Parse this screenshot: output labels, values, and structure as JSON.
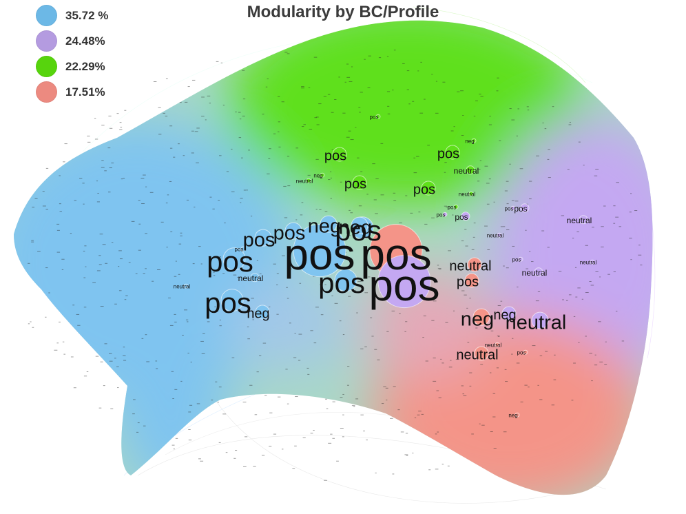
{
  "title": "Modularity by BC/Profile",
  "legend": [
    {
      "label": "35.72 %",
      "color": "#6cb8e6"
    },
    {
      "label": "24.48%",
      "color": "#b49be0"
    },
    {
      "label": "22.29%",
      "color": "#57d40d"
    },
    {
      "label": "17.51%",
      "color": "#ec8a80"
    }
  ],
  "clusters": [
    {
      "name": "blue",
      "color": "#7fc4f0"
    },
    {
      "name": "purple",
      "color": "#c4a8f2"
    },
    {
      "name": "green",
      "color": "#5fe01a"
    },
    {
      "name": "red",
      "color": "#f49488"
    }
  ],
  "node_labels": [
    {
      "text": "pos",
      "cluster": "blue",
      "size": "xl"
    },
    {
      "text": "pos",
      "cluster": "red",
      "size": "xl"
    },
    {
      "text": "pos",
      "cluster": "purple",
      "size": "xl"
    },
    {
      "text": "pos",
      "cluster": "blue",
      "size": "l"
    },
    {
      "text": "pos",
      "cluster": "blue",
      "size": "l"
    },
    {
      "text": "pos",
      "cluster": "blue",
      "size": "l"
    },
    {
      "text": "pos",
      "cluster": "blue",
      "size": "m"
    },
    {
      "text": "neg",
      "cluster": "blue",
      "size": "m"
    },
    {
      "text": "pos",
      "cluster": "blue",
      "size": "m"
    },
    {
      "text": "neg",
      "cluster": "blue",
      "size": "m"
    },
    {
      "text": "pos",
      "cluster": "blue",
      "size": "l"
    },
    {
      "text": "neg",
      "cluster": "blue",
      "size": "s"
    },
    {
      "text": "neutral",
      "cluster": "blue",
      "size": "xs"
    },
    {
      "text": "pos",
      "cluster": "blue",
      "size": "xxs"
    },
    {
      "text": "neutral",
      "cluster": "blue",
      "size": "xxs"
    },
    {
      "text": "neutral",
      "cluster": "green",
      "size": "xxs"
    },
    {
      "text": "neg",
      "cluster": "green",
      "size": "xxs"
    },
    {
      "text": "pos",
      "cluster": "green",
      "size": "xxs"
    },
    {
      "text": "pos",
      "cluster": "green",
      "size": "s"
    },
    {
      "text": "pos",
      "cluster": "green",
      "size": "s"
    },
    {
      "text": "pos",
      "cluster": "green",
      "size": "s"
    },
    {
      "text": "pos",
      "cluster": "green",
      "size": "s"
    },
    {
      "text": "neutral",
      "cluster": "green",
      "size": "xs"
    },
    {
      "text": "neutral",
      "cluster": "green",
      "size": "xxs"
    },
    {
      "text": "pos",
      "cluster": "green",
      "size": "xxs"
    },
    {
      "text": "neg",
      "cluster": "green",
      "size": "xxs"
    },
    {
      "text": "pos",
      "cluster": "purple",
      "size": "xs"
    },
    {
      "text": "pos",
      "cluster": "purple",
      "size": "xs"
    },
    {
      "text": "pos",
      "cluster": "purple",
      "size": "xxs"
    },
    {
      "text": "neutral",
      "cluster": "purple",
      "size": "xs"
    },
    {
      "text": "neutral",
      "cluster": "purple",
      "size": "xs"
    },
    {
      "text": "pos",
      "cluster": "purple",
      "size": "xxs"
    },
    {
      "text": "neutral",
      "cluster": "purple",
      "size": "xxs"
    },
    {
      "text": "neutral",
      "cluster": "purple",
      "size": "m"
    },
    {
      "text": "neg",
      "cluster": "purple",
      "size": "s"
    },
    {
      "text": "neutral",
      "cluster": "red",
      "size": "s"
    },
    {
      "text": "pos",
      "cluster": "red",
      "size": "s"
    },
    {
      "text": "neg",
      "cluster": "red",
      "size": "m"
    },
    {
      "text": "neutral",
      "cluster": "red",
      "size": "s"
    },
    {
      "text": "pos",
      "cluster": "red",
      "size": "xxs"
    },
    {
      "text": "neg",
      "cluster": "red",
      "size": "xxs"
    },
    {
      "text": "neutral",
      "cluster": "red",
      "size": "xxs"
    },
    {
      "text": "pos",
      "cluster": "purple",
      "size": "xxs"
    },
    {
      "text": "neutral",
      "cluster": "purple",
      "size": "xxs"
    }
  ]
}
